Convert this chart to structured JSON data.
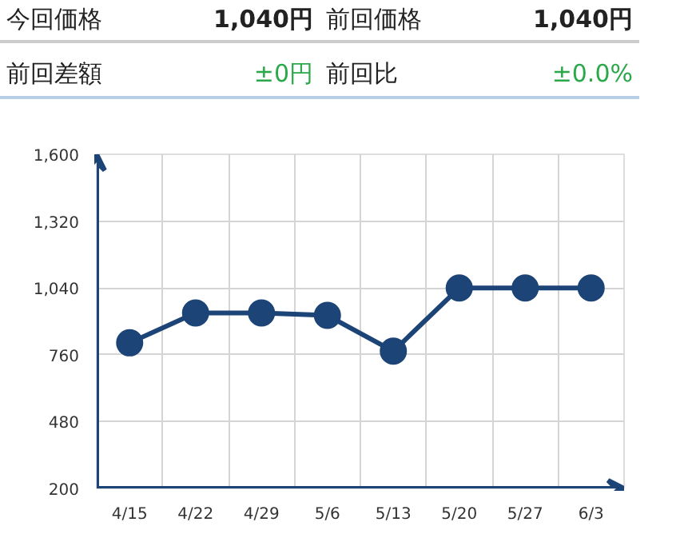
{
  "chart_data": {
    "type": "line",
    "annotations": [
      "今回価格",
      "1,040円",
      "前回価格",
      "1,040円",
      "前回差額",
      "±0円",
      "前回比",
      "±0.0%"
    ],
    "categories": [
      "4/15",
      "4/22",
      "4/29",
      "5/6",
      "5/13",
      "5/20",
      "5/27",
      "6/3"
    ],
    "values": [
      810,
      935,
      935,
      925,
      775,
      1040,
      1040,
      1040
    ],
    "color": "#1d4477",
    "marker": "circle",
    "line_style": "solid",
    "ylim": [
      200,
      1600
    ],
    "yticks": [
      200,
      480,
      760,
      {
        "value": 1040,
        "label": "1,040"
      },
      {
        "value": 1320,
        "label": "1,320"
      },
      {
        "value": 1600,
        "label": "1,600"
      }
    ],
    "grid": true
  }
}
